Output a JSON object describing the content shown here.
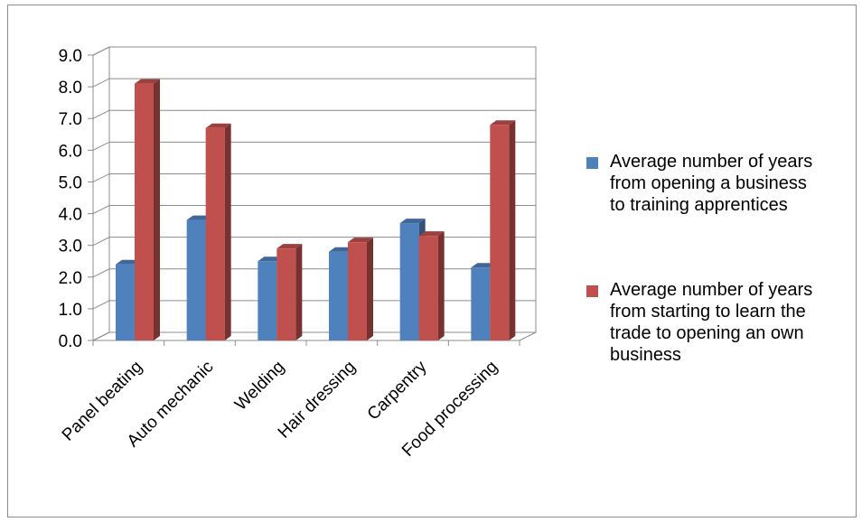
{
  "chart_data": {
    "type": "bar",
    "categories": [
      "Panel beating",
      "Auto mechanic",
      "Welding",
      "Hair dressing",
      "Carpentry",
      "Food processing"
    ],
    "series": [
      {
        "name": "Average number of years from opening a business to training apprentices",
        "color": "#4F81BD",
        "values": [
          2.4,
          3.8,
          2.5,
          2.8,
          3.7,
          2.3
        ]
      },
      {
        "name": "Average number of years from starting to learn the trade to opening an own business",
        "color": "#C0504D",
        "values": [
          8.1,
          6.7,
          2.9,
          3.1,
          3.3,
          6.8
        ]
      }
    ],
    "y_ticks": [
      "0.0",
      "1.0",
      "2.0",
      "3.0",
      "4.0",
      "5.0",
      "6.0",
      "7.0",
      "8.0",
      "9.0"
    ],
    "ylim": [
      0,
      9
    ],
    "grid": true,
    "legend_position": "right",
    "style": "3d-clustered-column"
  }
}
